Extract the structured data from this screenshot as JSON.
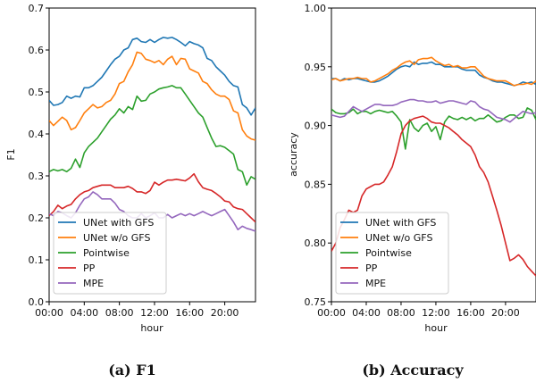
{
  "chart_data": [
    {
      "type": "line",
      "caption": "(a) F1",
      "xlabel": "hour",
      "ylabel": "F1",
      "ylim": [
        0.0,
        0.7
      ],
      "yticks": [
        "0.0",
        "0.1",
        "0.2",
        "0.3",
        "0.4",
        "0.5",
        "0.6",
        "0.7"
      ],
      "xticks": [
        "00:00",
        "04:00",
        "08:00",
        "12:00",
        "16:00",
        "20:00"
      ],
      "x": [
        "00:00",
        "00:30",
        "01:00",
        "01:30",
        "02:00",
        "02:30",
        "03:00",
        "03:30",
        "04:00",
        "04:30",
        "05:00",
        "05:30",
        "06:00",
        "06:30",
        "07:00",
        "07:30",
        "08:00",
        "08:30",
        "09:00",
        "09:30",
        "10:00",
        "10:30",
        "11:00",
        "11:30",
        "12:00",
        "12:30",
        "13:00",
        "13:30",
        "14:00",
        "14:30",
        "15:00",
        "15:30",
        "16:00",
        "16:30",
        "17:00",
        "17:30",
        "18:00",
        "18:30",
        "19:00",
        "19:30",
        "20:00",
        "20:30",
        "21:00",
        "21:30",
        "22:00",
        "22:30",
        "23:00",
        "23:30"
      ],
      "legend_position": "lower-left",
      "series": [
        {
          "name": "UNet with GFS",
          "color": "#1f77b4",
          "values": [
            0.48,
            0.468,
            0.47,
            0.475,
            0.49,
            0.485,
            0.49,
            0.488,
            0.51,
            0.51,
            0.515,
            0.525,
            0.535,
            0.55,
            0.565,
            0.578,
            0.585,
            0.6,
            0.605,
            0.625,
            0.628,
            0.62,
            0.618,
            0.625,
            0.618,
            0.625,
            0.63,
            0.628,
            0.63,
            0.625,
            0.618,
            0.61,
            0.62,
            0.615,
            0.612,
            0.605,
            0.58,
            0.575,
            0.56,
            0.55,
            0.54,
            0.525,
            0.515,
            0.512,
            0.47,
            0.462,
            0.445,
            0.462
          ]
        },
        {
          "name": "UNet w/o GFS",
          "color": "#ff7f0e",
          "values": [
            0.432,
            0.42,
            0.43,
            0.44,
            0.432,
            0.41,
            0.415,
            0.432,
            0.45,
            0.46,
            0.47,
            0.462,
            0.465,
            0.475,
            0.48,
            0.495,
            0.52,
            0.525,
            0.548,
            0.565,
            0.595,
            0.592,
            0.578,
            0.575,
            0.57,
            0.575,
            0.565,
            0.578,
            0.585,
            0.565,
            0.58,
            0.578,
            0.555,
            0.55,
            0.545,
            0.525,
            0.52,
            0.505,
            0.495,
            0.49,
            0.49,
            0.482,
            0.455,
            0.45,
            0.41,
            0.395,
            0.388,
            0.385
          ]
        },
        {
          "name": "Pointwise",
          "color": "#2ca02c",
          "values": [
            0.31,
            0.315,
            0.312,
            0.315,
            0.31,
            0.318,
            0.34,
            0.32,
            0.355,
            0.37,
            0.38,
            0.39,
            0.405,
            0.42,
            0.435,
            0.445,
            0.46,
            0.45,
            0.465,
            0.458,
            0.49,
            0.478,
            0.48,
            0.495,
            0.5,
            0.507,
            0.51,
            0.512,
            0.515,
            0.51,
            0.51,
            0.495,
            0.48,
            0.465,
            0.45,
            0.44,
            0.415,
            0.39,
            0.37,
            0.372,
            0.368,
            0.36,
            0.352,
            0.315,
            0.31,
            0.278,
            0.298,
            0.292
          ]
        },
        {
          "name": "PP",
          "color": "#d62728",
          "values": [
            0.205,
            0.215,
            0.23,
            0.222,
            0.228,
            0.232,
            0.245,
            0.255,
            0.262,
            0.265,
            0.272,
            0.275,
            0.278,
            0.278,
            0.278,
            0.272,
            0.272,
            0.272,
            0.275,
            0.27,
            0.262,
            0.262,
            0.258,
            0.265,
            0.285,
            0.278,
            0.285,
            0.29,
            0.29,
            0.292,
            0.29,
            0.288,
            0.295,
            0.305,
            0.286,
            0.272,
            0.268,
            0.265,
            0.258,
            0.25,
            0.24,
            0.238,
            0.226,
            0.222,
            0.22,
            0.21,
            0.2,
            0.19
          ]
        },
        {
          "name": "MPE",
          "color": "#9467bd",
          "values": [
            0.21,
            0.205,
            0.215,
            0.212,
            0.205,
            0.2,
            0.212,
            0.23,
            0.245,
            0.25,
            0.262,
            0.255,
            0.245,
            0.245,
            0.245,
            0.235,
            0.22,
            0.215,
            0.205,
            0.2,
            0.2,
            0.21,
            0.2,
            0.205,
            0.212,
            0.2,
            0.2,
            0.208,
            0.2,
            0.205,
            0.21,
            0.205,
            0.21,
            0.205,
            0.21,
            0.215,
            0.21,
            0.205,
            0.21,
            0.215,
            0.22,
            0.205,
            0.19,
            0.172,
            0.18,
            0.175,
            0.172,
            0.168
          ]
        }
      ]
    },
    {
      "type": "line",
      "caption": "(b) Accuracy",
      "xlabel": "hour",
      "ylabel": "accuracy",
      "ylim": [
        0.75,
        1.0
      ],
      "yticks": [
        "0.75",
        "0.80",
        "0.85",
        "0.90",
        "0.95",
        "1.00"
      ],
      "xticks": [
        "00:00",
        "04:00",
        "08:00",
        "12:00",
        "16:00",
        "20:00"
      ],
      "x": [
        "00:00",
        "00:30",
        "01:00",
        "01:30",
        "02:00",
        "02:30",
        "03:00",
        "03:30",
        "04:00",
        "04:30",
        "05:00",
        "05:30",
        "06:00",
        "06:30",
        "07:00",
        "07:30",
        "08:00",
        "08:30",
        "09:00",
        "09:30",
        "10:00",
        "10:30",
        "11:00",
        "11:30",
        "12:00",
        "12:30",
        "13:00",
        "13:30",
        "14:00",
        "14:30",
        "15:00",
        "15:30",
        "16:00",
        "16:30",
        "17:00",
        "17:30",
        "18:00",
        "18:30",
        "19:00",
        "19:30",
        "20:00",
        "20:30",
        "21:00",
        "21:30",
        "22:00",
        "22:30",
        "23:00",
        "23:30"
      ],
      "legend_position": "lower-left",
      "series": [
        {
          "name": "UNet with GFS",
          "color": "#1f77b4",
          "values": [
            0.94,
            0.94,
            0.938,
            0.94,
            0.939,
            0.94,
            0.94,
            0.939,
            0.938,
            0.937,
            0.937,
            0.938,
            0.94,
            0.942,
            0.945,
            0.948,
            0.95,
            0.951,
            0.95,
            0.954,
            0.952,
            0.953,
            0.953,
            0.954,
            0.952,
            0.952,
            0.95,
            0.95,
            0.95,
            0.95,
            0.948,
            0.947,
            0.947,
            0.947,
            0.943,
            0.941,
            0.94,
            0.938,
            0.937,
            0.937,
            0.936,
            0.935,
            0.934,
            0.935,
            0.937,
            0.936,
            0.937,
            0.935
          ]
        },
        {
          "name": "UNet w/o GFS",
          "color": "#ff7f0e",
          "values": [
            0.939,
            0.94,
            0.938,
            0.939,
            0.94,
            0.94,
            0.941,
            0.94,
            0.94,
            0.937,
            0.938,
            0.94,
            0.942,
            0.944,
            0.947,
            0.949,
            0.952,
            0.954,
            0.955,
            0.952,
            0.956,
            0.957,
            0.957,
            0.958,
            0.955,
            0.953,
            0.951,
            0.952,
            0.95,
            0.951,
            0.949,
            0.949,
            0.95,
            0.95,
            0.946,
            0.942,
            0.94,
            0.939,
            0.938,
            0.938,
            0.938,
            0.936,
            0.934,
            0.935,
            0.935,
            0.936,
            0.935,
            0.938
          ]
        },
        {
          "name": "Pointwise",
          "color": "#2ca02c",
          "values": [
            0.914,
            0.911,
            0.91,
            0.91,
            0.911,
            0.914,
            0.91,
            0.912,
            0.912,
            0.91,
            0.912,
            0.913,
            0.912,
            0.911,
            0.912,
            0.908,
            0.903,
            0.88,
            0.905,
            0.898,
            0.895,
            0.9,
            0.902,
            0.895,
            0.899,
            0.888,
            0.903,
            0.908,
            0.906,
            0.905,
            0.907,
            0.905,
            0.907,
            0.904,
            0.906,
            0.906,
            0.909,
            0.906,
            0.903,
            0.904,
            0.907,
            0.909,
            0.909,
            0.906,
            0.907,
            0.915,
            0.913,
            0.905
          ]
        },
        {
          "name": "PP",
          "color": "#d62728",
          "values": [
            0.793,
            0.8,
            0.813,
            0.82,
            0.828,
            0.826,
            0.828,
            0.84,
            0.846,
            0.848,
            0.85,
            0.85,
            0.852,
            0.858,
            0.865,
            0.878,
            0.893,
            0.9,
            0.904,
            0.906,
            0.907,
            0.908,
            0.906,
            0.903,
            0.902,
            0.902,
            0.9,
            0.898,
            0.895,
            0.892,
            0.888,
            0.885,
            0.882,
            0.875,
            0.865,
            0.86,
            0.852,
            0.84,
            0.828,
            0.815,
            0.8,
            0.785,
            0.787,
            0.79,
            0.786,
            0.78,
            0.776,
            0.772
          ]
        },
        {
          "name": "MPE",
          "color": "#9467bd",
          "values": [
            0.909,
            0.908,
            0.907,
            0.908,
            0.912,
            0.916,
            0.914,
            0.912,
            0.914,
            0.916,
            0.918,
            0.918,
            0.917,
            0.917,
            0.917,
            0.918,
            0.92,
            0.921,
            0.922,
            0.922,
            0.921,
            0.921,
            0.92,
            0.92,
            0.921,
            0.919,
            0.92,
            0.921,
            0.921,
            0.92,
            0.919,
            0.918,
            0.921,
            0.92,
            0.916,
            0.914,
            0.913,
            0.91,
            0.907,
            0.906,
            0.905,
            0.903,
            0.906,
            0.909,
            0.912,
            0.911,
            0.91,
            0.911
          ]
        }
      ]
    }
  ]
}
